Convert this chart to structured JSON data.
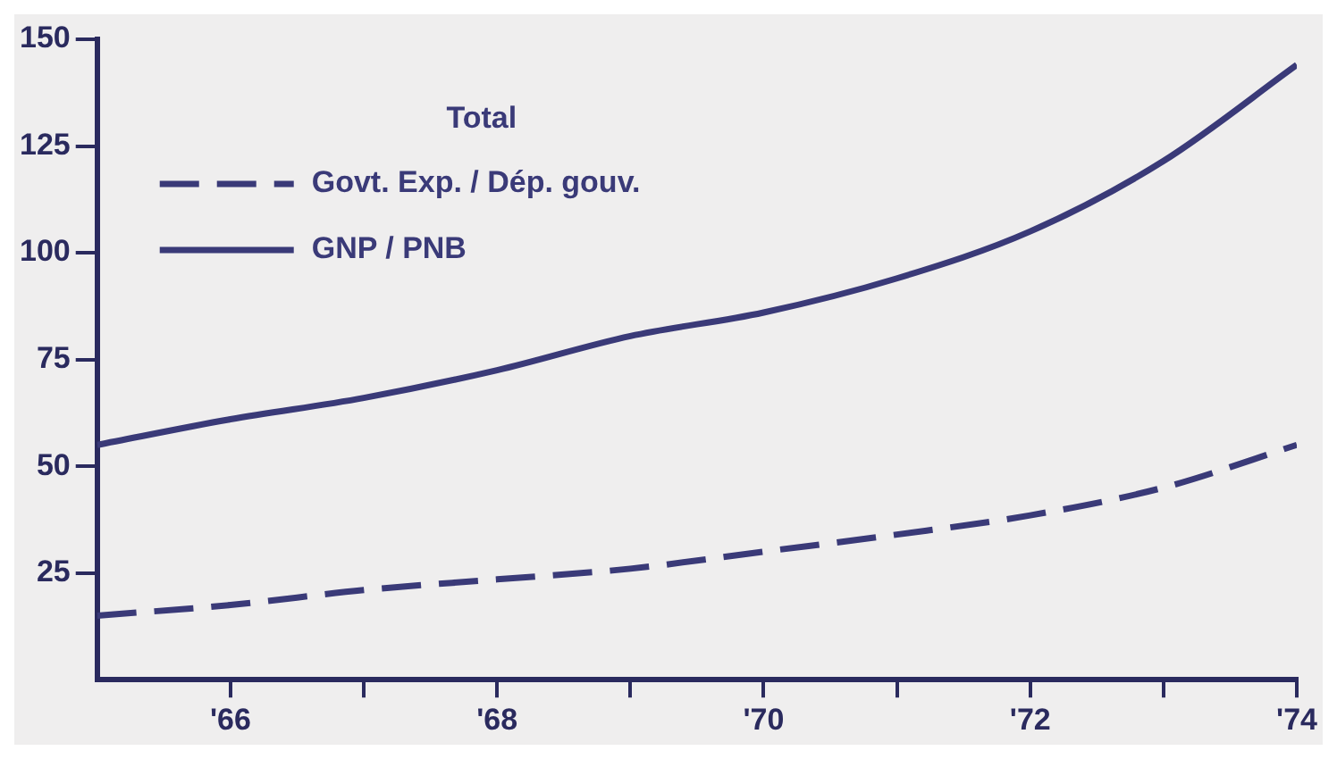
{
  "chart_data": {
    "type": "line",
    "legend_title": "Total",
    "x": [
      1965,
      1966,
      1967,
      1968,
      1969,
      1970,
      1971,
      1972,
      1973,
      1974
    ],
    "series": [
      {
        "name": "Govt. Exp. / Dép. gouv.",
        "color": "#3a3a78",
        "line_style": "dashed",
        "values": [
          15,
          17.5,
          21,
          23.5,
          26,
          30,
          34,
          38.5,
          45,
          55
        ]
      },
      {
        "name": "GNP / PNB",
        "color": "#3a3a78",
        "line_style": "solid",
        "values": [
          55,
          61,
          66,
          72.5,
          80.5,
          86,
          94,
          105,
          121.5,
          144
        ]
      }
    ],
    "xlim": [
      1965,
      1974
    ],
    "xticks": [
      {
        "value": 1966,
        "label": "'66"
      },
      {
        "value": 1967,
        "label": null
      },
      {
        "value": 1968,
        "label": "'68"
      },
      {
        "value": 1969,
        "label": null
      },
      {
        "value": 1970,
        "label": "'70"
      },
      {
        "value": 1971,
        "label": null
      },
      {
        "value": 1972,
        "label": "'72"
      },
      {
        "value": 1973,
        "label": null
      },
      {
        "value": 1974,
        "label": "'74"
      }
    ],
    "ylim": [
      0,
      150
    ],
    "yticks": [
      25,
      50,
      75,
      100,
      125,
      150
    ],
    "grid": false,
    "legend": "top left",
    "marker": "none"
  }
}
